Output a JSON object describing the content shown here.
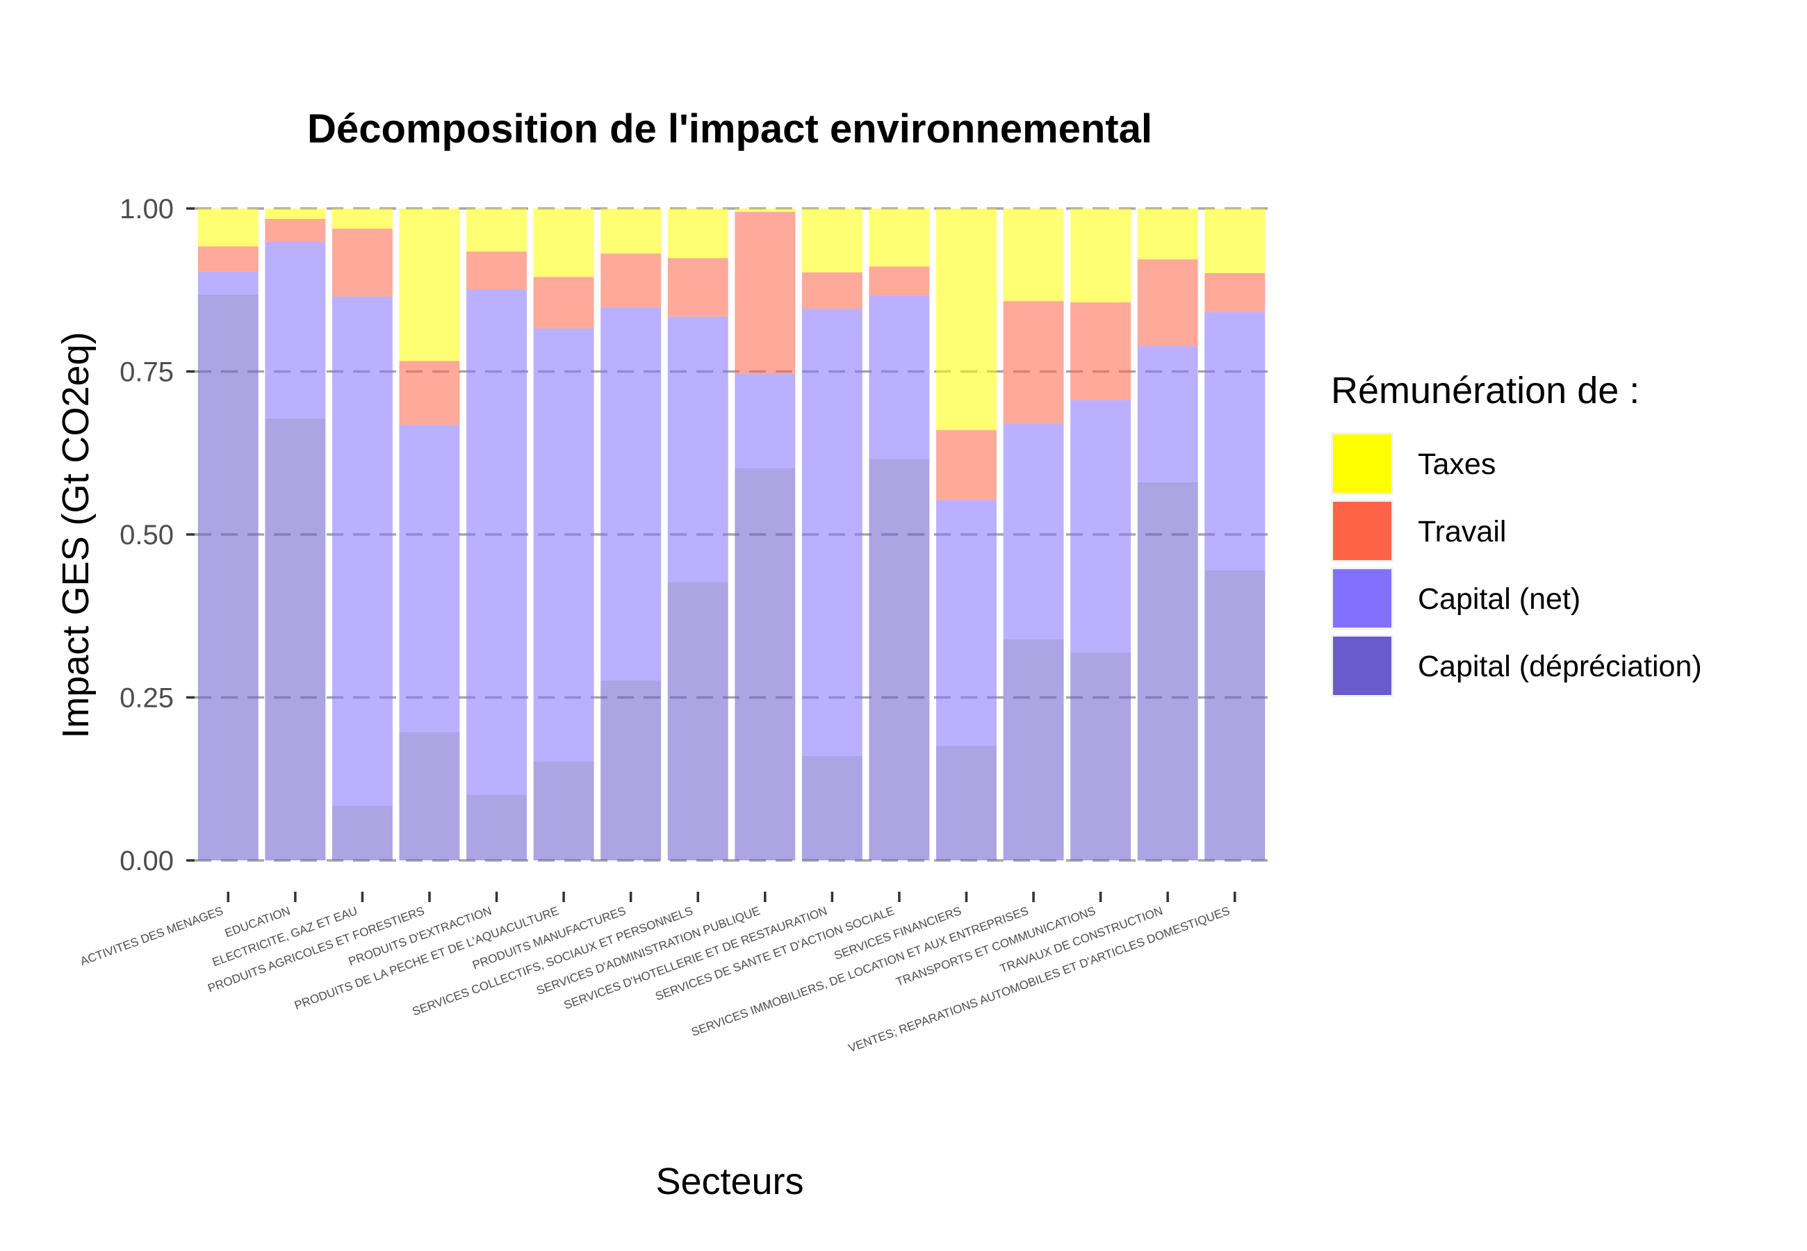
{
  "chart_data": {
    "type": "bar",
    "stacked": true,
    "title": "Décomposition de l'impact environnemental",
    "xlabel": "Secteurs",
    "ylabel": "Impact GES (Gt CO2eq)",
    "ylim": [
      0,
      1
    ],
    "yticks": [
      "0.00",
      "0.25",
      "0.50",
      "0.75",
      "1.00"
    ],
    "grid": "horizontal dashed",
    "legend": {
      "title": "Rémunération de :",
      "position": "right",
      "entries": [
        "Taxes",
        "Travail",
        "Capital (net)",
        "Capital (dépréciation)"
      ]
    },
    "categories": [
      "ACTIVITES DES MENAGES",
      "EDUCATION",
      "ELECTRICITE, GAZ ET EAU",
      "PRODUITS AGRICOLES ET FORESTIERS",
      "PRODUITS D'EXTRACTION",
      "PRODUITS DE LA PECHE ET DE L'AQUACULTURE",
      "PRODUITS MANUFACTURES",
      "SERVICES COLLECTIFS, SOCIAUX ET PERSONNELS",
      "SERVICES D'ADMINISTRATION PUBLIQUE",
      "SERVICES D'HOTELLERIE ET DE RESTAURATION",
      "SERVICES DE SANTE ET D'ACTION SOCIALE",
      "SERVICES FINANCIERS",
      "SERVICES IMMOBILIERS, DE LOCATION ET AUX ENTREPRISES",
      "TRANSPORTS ET COMMUNICATIONS",
      "TRAVAUX DE CONSTRUCTION",
      "VENTES; REPARATIONS AUTOMOBILES ET D'ARTICLES DOMESTIQUES"
    ],
    "series": [
      {
        "name": "Capital (dépréciation)",
        "color": "#6a5acd",
        "values": [
          0.868,
          0.678,
          0.084,
          0.197,
          0.101,
          0.152,
          0.276,
          0.427,
          0.602,
          0.16,
          0.616,
          0.176,
          0.339,
          0.319,
          0.58,
          0.445
        ]
      },
      {
        "name": "Capital (net)",
        "color": "#8470ff",
        "values": [
          0.035,
          0.271,
          0.781,
          0.471,
          0.775,
          0.664,
          0.572,
          0.407,
          0.145,
          0.686,
          0.251,
          0.377,
          0.331,
          0.387,
          0.209,
          0.396
        ]
      },
      {
        "name": "Travail",
        "color": "#ff6347",
        "values": [
          0.039,
          0.035,
          0.104,
          0.098,
          0.058,
          0.079,
          0.083,
          0.09,
          0.248,
          0.056,
          0.044,
          0.107,
          0.188,
          0.15,
          0.133,
          0.06
        ]
      },
      {
        "name": "Taxes",
        "color": "#ffff00",
        "values": [
          0.058,
          0.016,
          0.031,
          0.234,
          0.066,
          0.105,
          0.069,
          0.076,
          0.005,
          0.098,
          0.089,
          0.34,
          0.142,
          0.144,
          0.078,
          0.099
        ]
      }
    ],
    "bar_alpha": 0.55
  }
}
